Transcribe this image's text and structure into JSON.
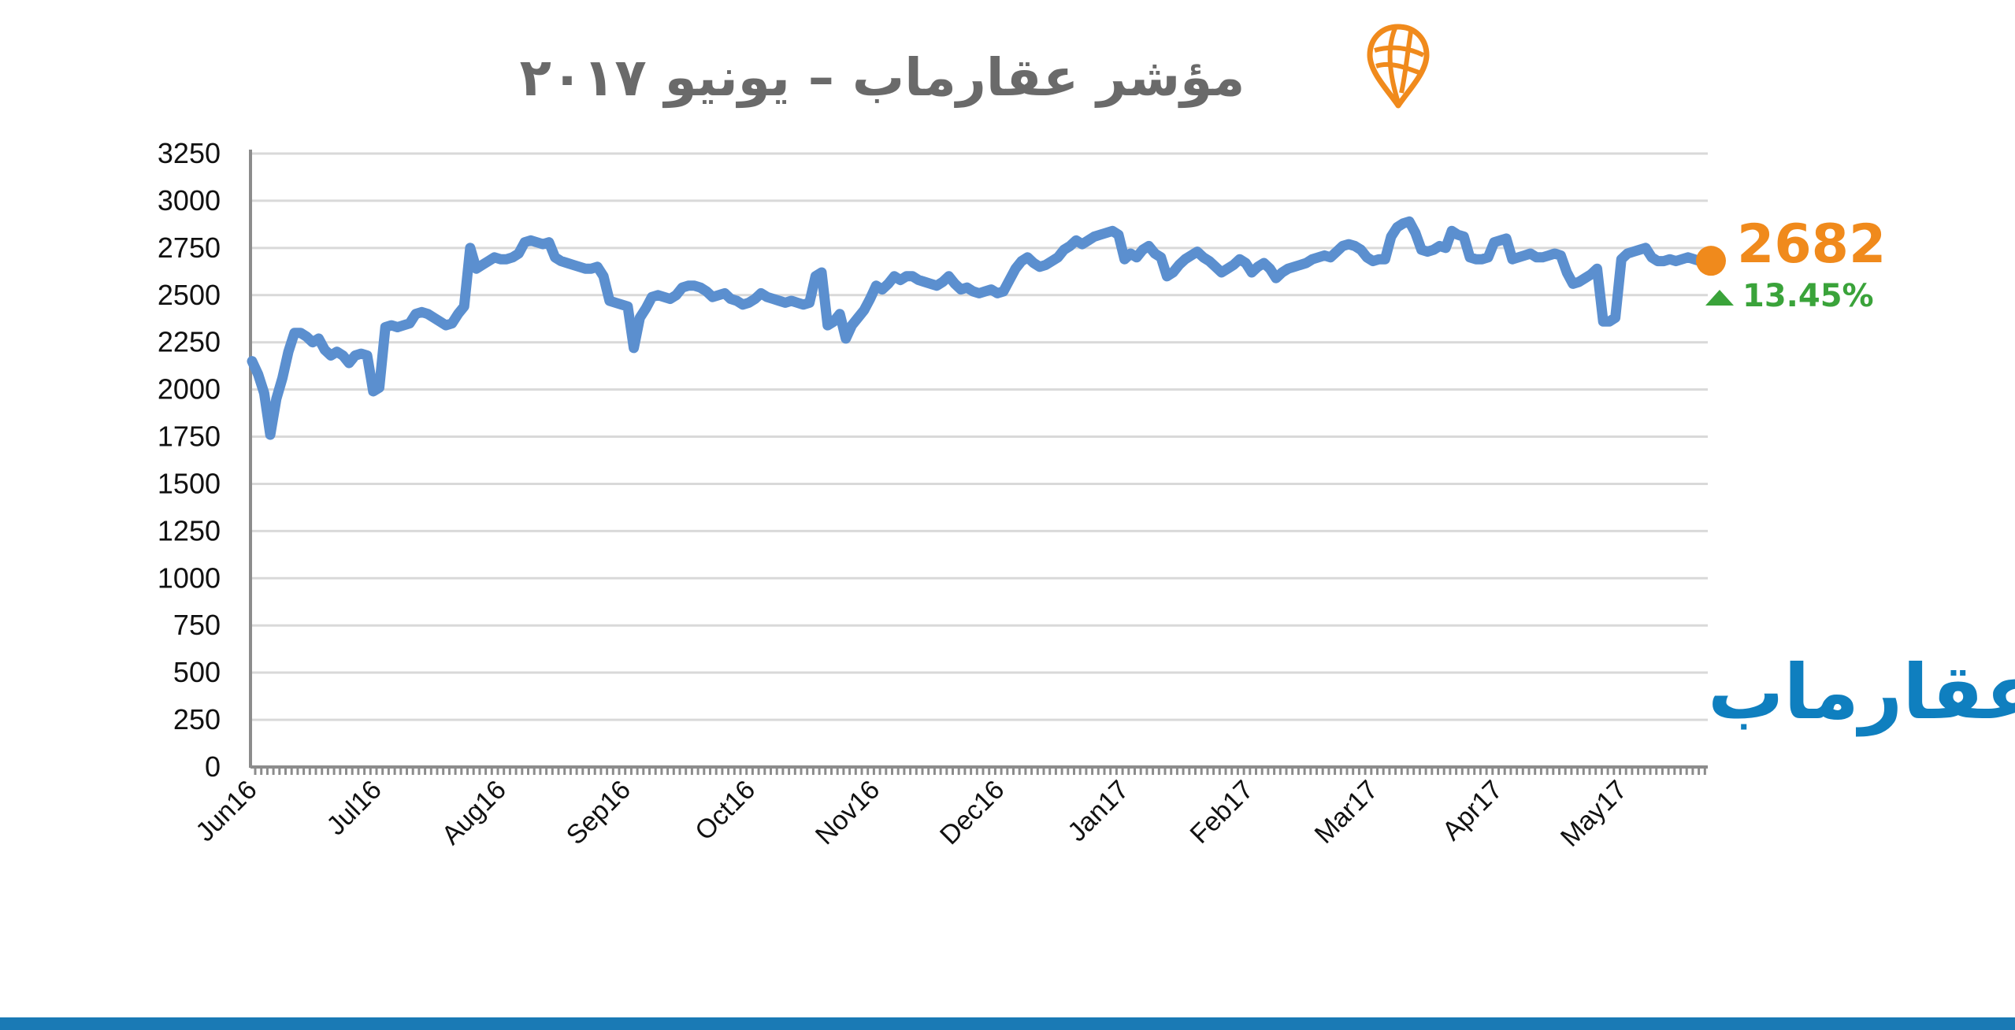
{
  "title": "مؤشر عقارماب – يونيو ٢٠١٧",
  "watermark": "عقارماب",
  "colors": {
    "line": "#5b8fcf",
    "accent": "#f08a1c",
    "positive": "#3aa33a",
    "brand": "#0f7fbf",
    "footer": "#1a7ab5",
    "grid": "#d9d9d9"
  },
  "icons": {
    "logo": "map-pin-globe-icon",
    "change": "triangle-up-icon",
    "current": "dot-marker-icon"
  },
  "current": {
    "value": "2682",
    "change": "13.45%"
  },
  "chart_data": {
    "type": "line",
    "title": "",
    "xlabel": "",
    "ylabel": "",
    "ylim": [
      0,
      3250
    ],
    "yticks": [
      0,
      250,
      500,
      750,
      1000,
      1250,
      1500,
      1750,
      2000,
      2250,
      2500,
      2750,
      3000,
      3250
    ],
    "x_tick_labels": [
      "Jun16",
      "Jul16",
      "Aug16",
      "Sep16",
      "Oct16",
      "Nov16",
      "Dec16",
      "Jan17",
      "Feb17",
      "Mar17",
      "Apr17",
      "May17"
    ],
    "grid": true,
    "series": [
      {
        "values": [
          2150,
          2080,
          1980,
          1760,
          1950,
          2060,
          2200,
          2300,
          2300,
          2280,
          2250,
          2270,
          2210,
          2180,
          2200,
          2180,
          2140,
          2180,
          2190,
          2180,
          1990,
          2010,
          2330,
          2340,
          2330,
          2340,
          2350,
          2400,
          2410,
          2400,
          2380,
          2360,
          2340,
          2350,
          2400,
          2440,
          2750,
          2640,
          2660,
          2680,
          2700,
          2690,
          2690,
          2700,
          2720,
          2780,
          2790,
          2780,
          2770,
          2780,
          2700,
          2680,
          2670,
          2660,
          2650,
          2640,
          2640,
          2650,
          2600,
          2470,
          2460,
          2450,
          2440,
          2220,
          2380,
          2430,
          2490,
          2500,
          2490,
          2480,
          2500,
          2540,
          2550,
          2550,
          2540,
          2520,
          2490,
          2500,
          2510,
          2480,
          2470,
          2450,
          2460,
          2480,
          2510,
          2490,
          2480,
          2470,
          2460,
          2470,
          2460,
          2450,
          2460,
          2600,
          2620,
          2340,
          2360,
          2400,
          2270,
          2340,
          2380,
          2420,
          2480,
          2550,
          2530,
          2560,
          2600,
          2580,
          2600,
          2600,
          2580,
          2570,
          2560,
          2550,
          2570,
          2600,
          2560,
          2530,
          2540,
          2520,
          2510,
          2520,
          2530,
          2510,
          2520,
          2580,
          2640,
          2680,
          2700,
          2670,
          2650,
          2660,
          2680,
          2700,
          2740,
          2760,
          2790,
          2770,
          2790,
          2810,
          2820,
          2830,
          2840,
          2820,
          2690,
          2720,
          2700,
          2740,
          2760,
          2720,
          2700,
          2600,
          2620,
          2660,
          2690,
          2710,
          2730,
          2700,
          2680,
          2650,
          2620,
          2640,
          2660,
          2690,
          2670,
          2620,
          2650,
          2670,
          2640,
          2590,
          2620,
          2640,
          2650,
          2660,
          2670,
          2690,
          2700,
          2710,
          2700,
          2730,
          2760,
          2770,
          2760,
          2740,
          2700,
          2680,
          2690,
          2690,
          2810,
          2860,
          2880,
          2890,
          2830,
          2740,
          2730,
          2740,
          2760,
          2750,
          2840,
          2820,
          2810,
          2700,
          2690,
          2690,
          2700,
          2780,
          2790,
          2800,
          2690,
          2700,
          2710,
          2720,
          2700,
          2700,
          2710,
          2720,
          2710,
          2620,
          2560,
          2570,
          2590,
          2610,
          2640,
          2360,
          2360,
          2380,
          2690,
          2720,
          2730,
          2740,
          2750,
          2700,
          2680,
          2680,
          2690,
          2680,
          2690,
          2700,
          2690,
          2680,
          2682
        ]
      }
    ]
  }
}
